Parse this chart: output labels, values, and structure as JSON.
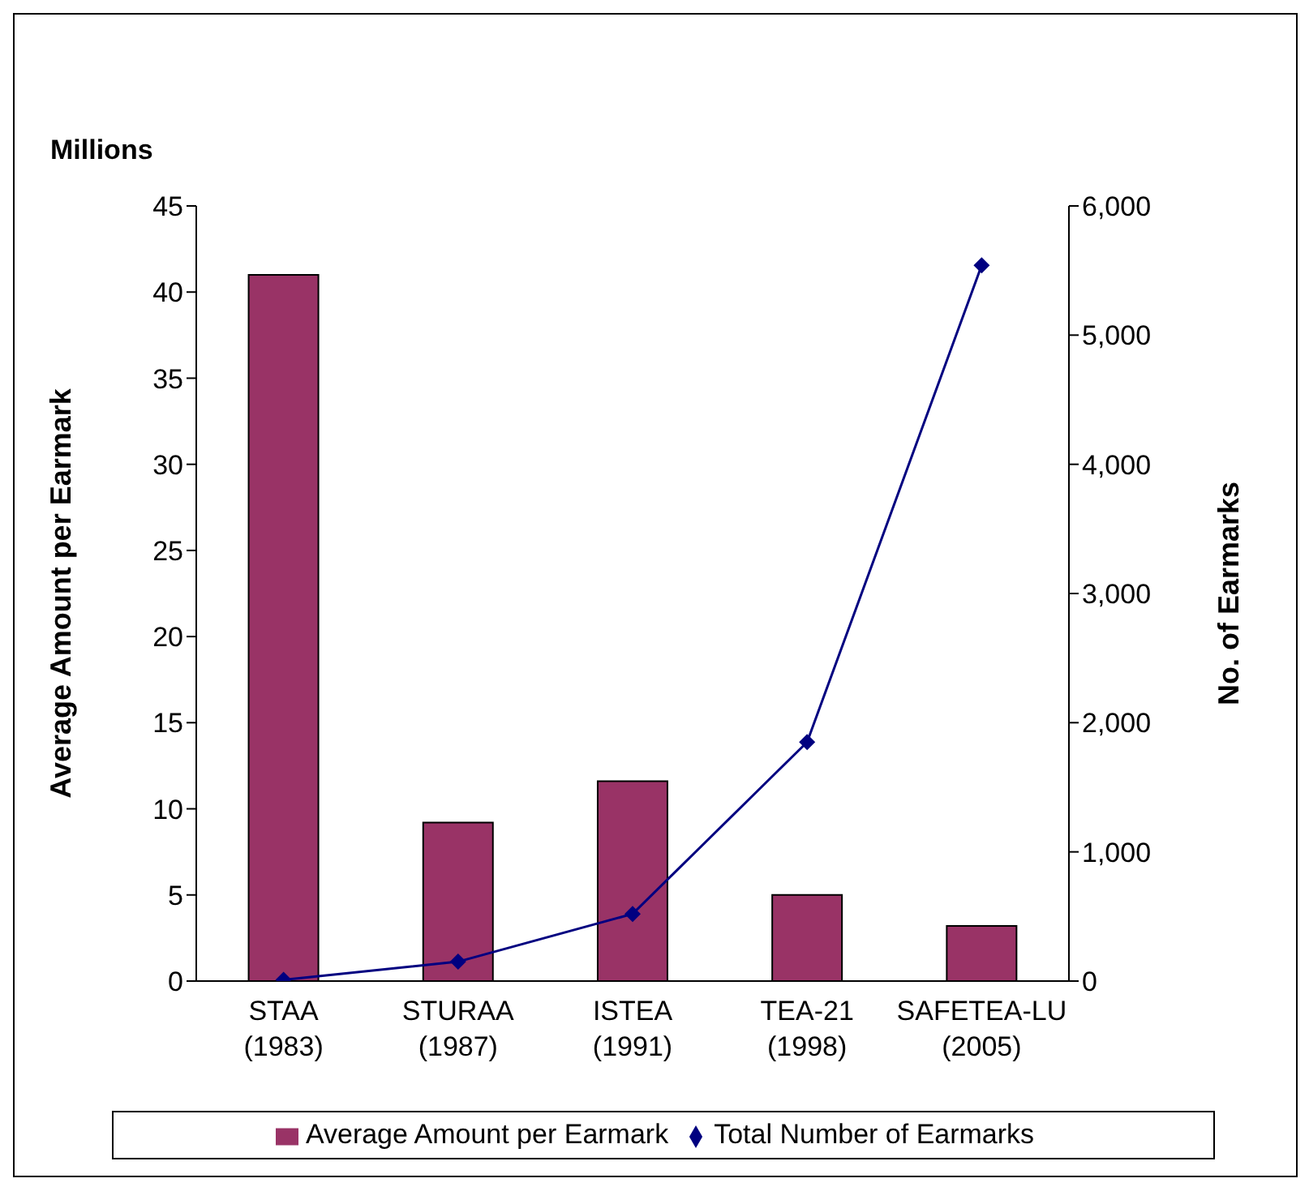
{
  "chart_data": {
    "type": "bar",
    "categories": [
      "STAA (1983)",
      "STURAA (1987)",
      "ISTEA (1991)",
      "TEA-21 (1998)",
      "SAFETEA-LU (2005)"
    ],
    "series": [
      {
        "name": "Average Amount per Earmark",
        "color": "#993366",
        "values": [
          41,
          9.2,
          11.6,
          5,
          3.2
        ]
      },
      {
        "name": "Total Number of Earmarks",
        "type": "line",
        "axis": "y2",
        "color": "#000080",
        "values": [
          10,
          150,
          520,
          1850,
          5540
        ]
      }
    ],
    "ylabel": "Average Amount per Earmark",
    "y2label": "No. of Earmarks",
    "annotations": [
      "Millions"
    ],
    "ylim": [
      0,
      45
    ],
    "yticks": [
      0,
      5,
      10,
      15,
      20,
      25,
      30,
      35,
      40,
      45
    ],
    "y2lim": [
      0,
      6000
    ],
    "y2ticks": [
      {
        "value": 0,
        "label": "0"
      },
      {
        "value": 1000,
        "label": "1,000"
      },
      {
        "value": 2000,
        "label": "2,000"
      },
      {
        "value": 3000,
        "label": "3,000"
      },
      {
        "value": 4000,
        "label": "4,000"
      },
      {
        "value": 5000,
        "label": "5,000"
      },
      {
        "value": 6000,
        "label": "6,000"
      }
    ],
    "grid": false,
    "legend": "bottom",
    "marker": "diamond",
    "line_style": "solid"
  }
}
